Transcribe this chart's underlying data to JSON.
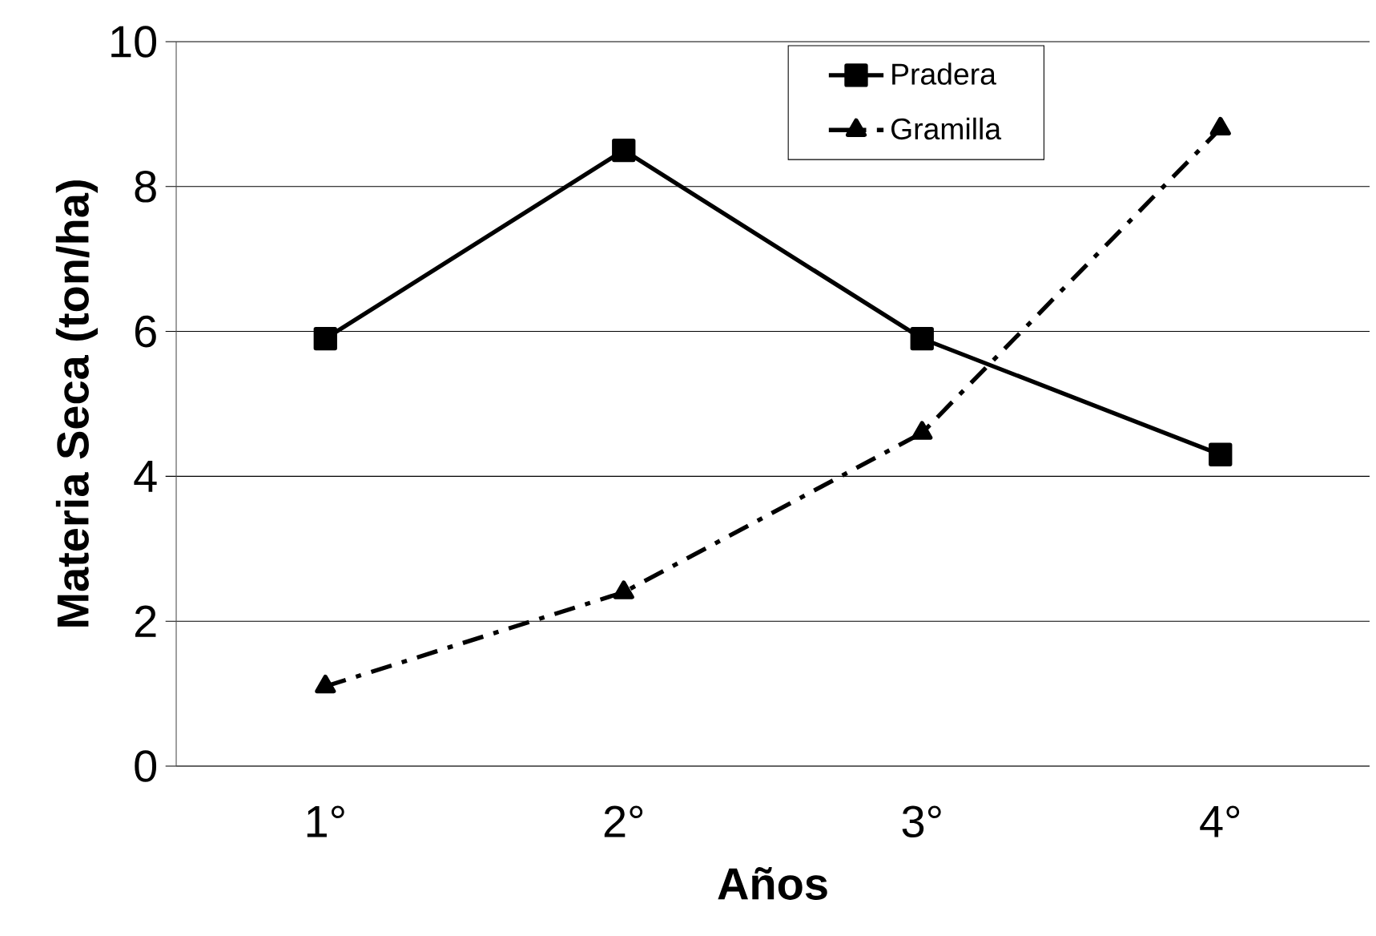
{
  "chart_data": {
    "type": "line",
    "xlabel": "Años",
    "ylabel": "Materia Seca (ton/ha)",
    "categories": [
      "1°",
      "2°",
      "3°",
      "4°"
    ],
    "series": [
      {
        "name": "Pradera",
        "color": "#000000",
        "values": [
          5.9,
          8.5,
          5.9,
          4.3
        ],
        "marker": "square",
        "line_style": "solid"
      },
      {
        "name": "Gramilla",
        "color": "#000000",
        "values": [
          1.1,
          2.4,
          4.6,
          8.8
        ],
        "marker": "triangle",
        "line_style": "dashdot"
      }
    ],
    "ylim": [
      0,
      10
    ],
    "yticks": [
      0,
      2,
      4,
      6,
      8,
      10
    ],
    "grid": "y",
    "legend": "top"
  }
}
